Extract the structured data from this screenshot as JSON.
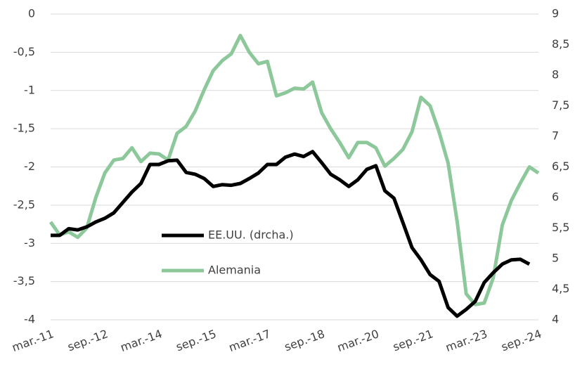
{
  "chart_data": {
    "type": "line",
    "categories": [
      "mar.-11",
      null,
      null,
      null,
      null,
      null,
      "sep.-12",
      null,
      null,
      null,
      null,
      null,
      "mar.-14",
      null,
      null,
      null,
      null,
      null,
      "sep.-15",
      null,
      null,
      null,
      null,
      null,
      "mar.-17",
      null,
      null,
      null,
      null,
      null,
      "sep.-18",
      null,
      null,
      null,
      null,
      null,
      "mar.-20",
      null,
      null,
      null,
      null,
      null,
      "sep.-21",
      null,
      null,
      null,
      null,
      null,
      "mar.-23",
      null,
      null,
      null,
      null,
      null,
      "sep.-24"
    ],
    "series": [
      {
        "name": "EE.UU. (drcha.)",
        "color": "#000000",
        "axis": "y2",
        "values": [
          5.38,
          5.38,
          5.49,
          5.47,
          5.52,
          5.6,
          5.66,
          5.75,
          5.92,
          6.09,
          6.23,
          6.54,
          6.54,
          6.6,
          6.61,
          6.41,
          6.38,
          6.31,
          6.18,
          6.21,
          6.2,
          6.23,
          6.31,
          6.4,
          6.54,
          6.54,
          6.66,
          6.71,
          6.67,
          6.75,
          6.57,
          6.38,
          6.29,
          6.18,
          6.29,
          6.46,
          6.52,
          6.11,
          5.99,
          5.59,
          5.18,
          4.98,
          4.74,
          4.63,
          4.2,
          4.06,
          4.17,
          4.3,
          4.61,
          4.77,
          4.91,
          4.98,
          4.99,
          4.91,
          null
        ]
      },
      {
        "name": "Alemania",
        "color": "#8dc89b",
        "values": [
          -2.72,
          -2.89,
          -2.85,
          -2.92,
          -2.8,
          -2.4,
          -2.08,
          -1.91,
          -1.89,
          -1.75,
          -1.93,
          -1.82,
          -1.83,
          -1.91,
          -1.56,
          -1.47,
          -1.27,
          -0.99,
          -0.74,
          -0.61,
          -0.52,
          -0.28,
          -0.5,
          -0.65,
          -0.62,
          -1.07,
          -1.03,
          -0.97,
          -0.98,
          -0.89,
          -1.29,
          -1.5,
          -1.68,
          -1.88,
          -1.68,
          -1.68,
          -1.75,
          -1.99,
          -1.89,
          -1.77,
          -1.54,
          -1.09,
          -1.2,
          -1.54,
          -1.95,
          -2.71,
          -3.66,
          -3.8,
          -3.78,
          -3.45,
          -2.76,
          -2.44,
          -2.21,
          -2.0,
          -2.08
        ]
      }
    ],
    "ylim": [
      -4,
      0
    ],
    "yticks": [
      0,
      {
        "value": -0.5,
        "label": "-0,5"
      },
      -1,
      {
        "value": -1.5,
        "label": "-1,5"
      },
      -2,
      {
        "value": -2.5,
        "label": "-2,5"
      },
      -3,
      {
        "value": -3.5,
        "label": "-3,5"
      },
      -4
    ],
    "y2lim": [
      4,
      9
    ],
    "y2ticks": [
      4,
      {
        "value": 4.5,
        "label": "4,5"
      },
      5,
      {
        "value": 5.5,
        "label": "5,5"
      },
      6,
      {
        "value": 6.5,
        "label": "6,5"
      },
      7,
      {
        "value": 7.5,
        "label": "7,5"
      },
      8,
      {
        "value": 8.5,
        "label": "8,5"
      },
      9
    ],
    "grid": true,
    "legend": "lower left"
  }
}
